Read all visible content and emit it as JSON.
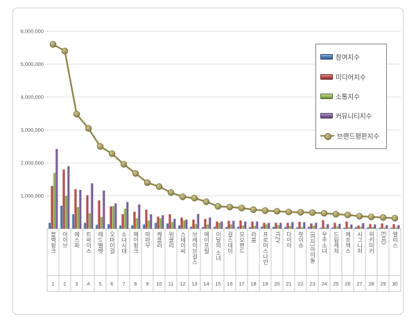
{
  "chart_data": {
    "type": "bar",
    "subtype": "grouped-bars-with-line-overlay",
    "title": "",
    "categories": [
      "블랙핑크",
      "아이브",
      "에스파",
      "트와이스",
      "레드벨벳",
      "오마이걸",
      "소녀시대",
      "에이핑크",
      "마마무",
      "케플러",
      "위클리",
      "스테이씨",
      "브레이브걸스",
      "에이프릴",
      "이달의 소녀",
      "걸스데이",
      "모모랜드",
      "라붐",
      "프로미스나인",
      "ITZY",
      "다이아",
      "핫이슈",
      "(여자)아이들",
      "우주소녀",
      "드림캐쳐",
      "에프엑스",
      "시그니처",
      "위키미키",
      "EXID",
      "엘리스"
    ],
    "ranks": [
      "1",
      "2",
      "3",
      "4",
      "5",
      "6",
      "7",
      "8",
      "9",
      "10",
      "11",
      "12",
      "13",
      "14",
      "15",
      "16",
      "17",
      "18",
      "19",
      "20",
      "21",
      "22",
      "23",
      "24",
      "25",
      "26",
      "27",
      "28",
      "29",
      "30"
    ],
    "series": [
      {
        "name": "참여지수",
        "type": "bar",
        "color": "#4F81BD",
        "values": [
          180000,
          700000,
          440000,
          180000,
          120000,
          140000,
          100000,
          100000,
          130000,
          180000,
          160000,
          100000,
          60000,
          50000,
          60000,
          50000,
          60000,
          50000,
          60000,
          60000,
          50000,
          40000,
          60000,
          30000,
          40000,
          30000,
          50000,
          40000,
          30000,
          30000
        ]
      },
      {
        "name": "미디어지수",
        "type": "bar",
        "color": "#C0504D",
        "values": [
          1300000,
          1800000,
          1200000,
          1020000,
          860000,
          680000,
          440000,
          520000,
          580000,
          370000,
          440000,
          340000,
          280000,
          300000,
          220000,
          240000,
          250000,
          220000,
          180000,
          180000,
          180000,
          210000,
          160000,
          260000,
          180000,
          220000,
          100000,
          140000,
          160000,
          140000
        ]
      },
      {
        "name": "소통지수",
        "type": "bar",
        "color": "#9BBB59",
        "values": [
          1700000,
          1000000,
          660000,
          470000,
          360000,
          690000,
          610000,
          320000,
          250000,
          320000,
          200000,
          250000,
          140000,
          130000,
          180000,
          130000,
          100000,
          90000,
          130000,
          110000,
          80000,
          50000,
          90000,
          40000,
          70000,
          40000,
          60000,
          50000,
          40000,
          40000
        ]
      },
      {
        "name": "커뮤니티지수",
        "type": "bar",
        "color": "#8064A2",
        "values": [
          2420000,
          1900000,
          1180000,
          1380000,
          1160000,
          770000,
          810000,
          740000,
          440000,
          410000,
          300000,
          280000,
          450000,
          340000,
          220000,
          240000,
          220000,
          220000,
          180000,
          180000,
          200000,
          200000,
          180000,
          140000,
          150000,
          130000,
          170000,
          130000,
          110000,
          110000
        ]
      },
      {
        "name": "브랜드평판지수",
        "type": "line",
        "color": "#8E854B",
        "values": [
          5600000,
          5400000,
          3480000,
          3050000,
          2500000,
          2280000,
          1960000,
          1680000,
          1400000,
          1280000,
          1100000,
          970000,
          930000,
          820000,
          680000,
          660000,
          630000,
          580000,
          550000,
          530000,
          510000,
          500000,
          490000,
          470000,
          440000,
          420000,
          380000,
          360000,
          340000,
          320000
        ]
      }
    ],
    "y_axis": {
      "min": 0,
      "max": 6000000,
      "tick_interval": 1000000,
      "tick_labels": [
        "1,000,000",
        "2,000,000",
        "3,000,000",
        "4,000,000",
        "5,000,000",
        "6,000,000"
      ]
    },
    "grid": true,
    "legend_position": "inside-top-right",
    "colors": {
      "gridline": "#e0e0e0",
      "axis_line": "#c6c6c6",
      "text": "#595959",
      "marker_edge": "#60592c"
    }
  }
}
